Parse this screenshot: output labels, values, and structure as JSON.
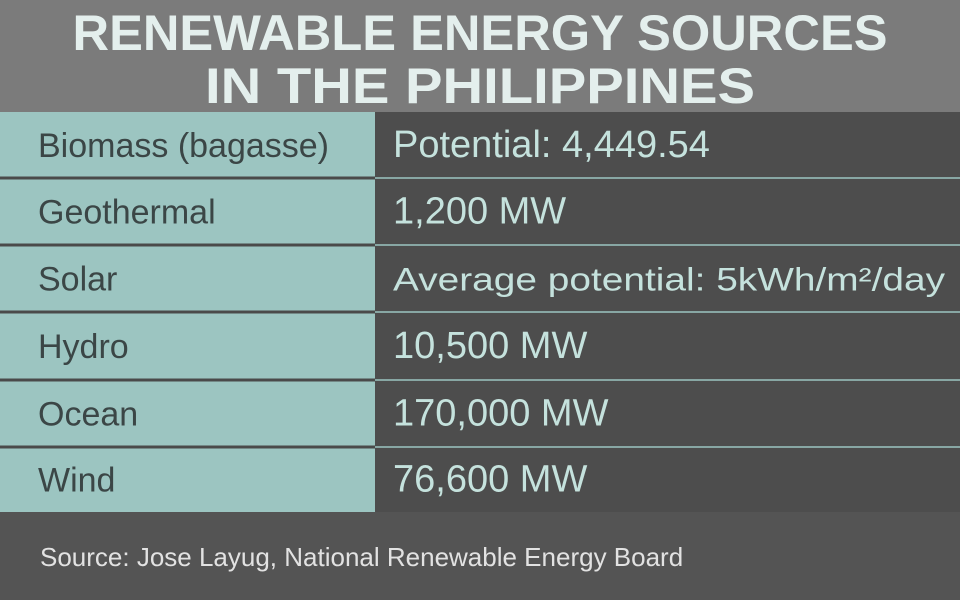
{
  "header": {
    "title_lines": [
      "RENEWABLE ENERGY SOURCES",
      "IN THE PHILIPPINES"
    ]
  },
  "table": {
    "rows": [
      [
        "Biomass (bagasse)",
        "Potential: 4,449.54"
      ],
      [
        "Geothermal",
        "1,200 MW"
      ],
      [
        "Solar",
        "Average potential: 5kWh/m²/day"
      ],
      [
        "Hydro",
        "10,500 MW"
      ],
      [
        "Ocean",
        "170,000 MW"
      ],
      [
        "Wind",
        "76,600 MW"
      ]
    ]
  },
  "footer": {
    "source": "Source: Jose Layug, National Renewable Energy Board"
  }
}
